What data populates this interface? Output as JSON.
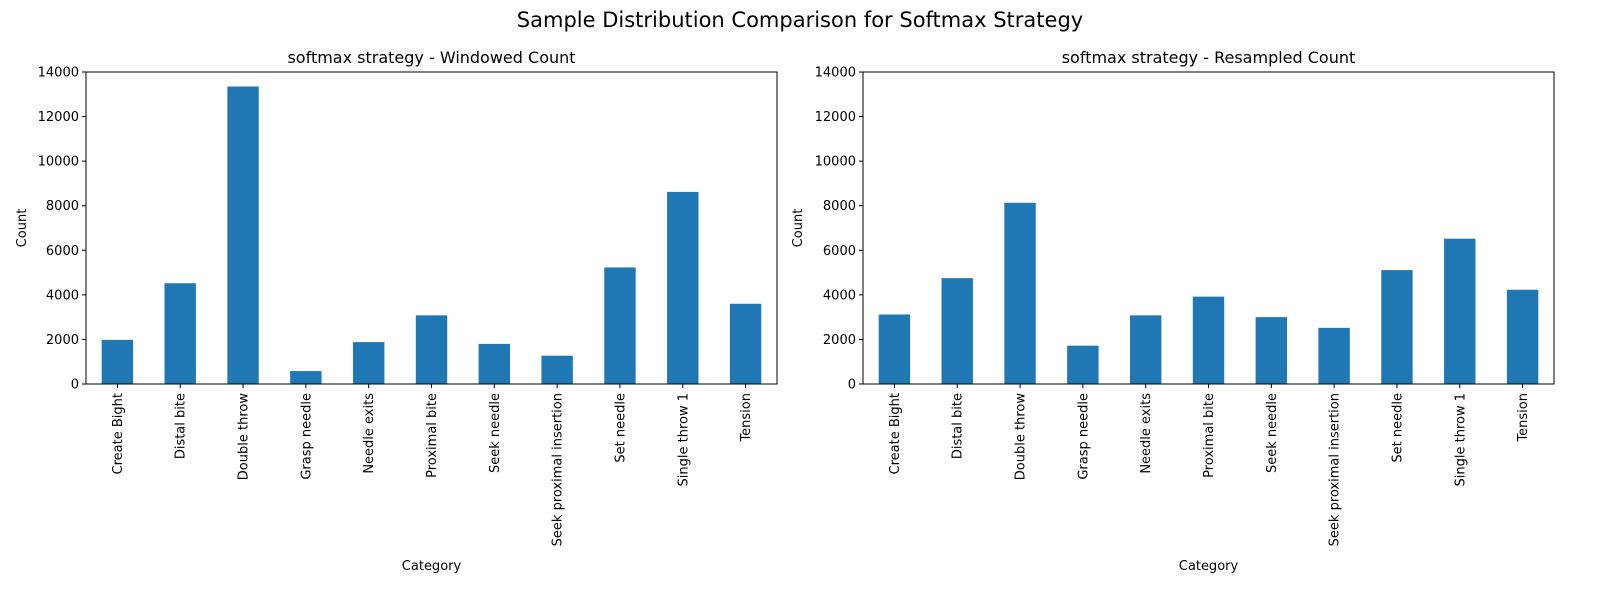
{
  "figure_title": "Sample Distribution Comparison for Softmax Strategy",
  "colors": {
    "bar": "#1f77b4",
    "axis": "#000000"
  },
  "chart_data": [
    {
      "type": "bar",
      "title": "softmax strategy - Windowed Count",
      "xlabel": "Category",
      "ylabel": "Count",
      "ylim": [
        0,
        14000
      ],
      "yticks": [
        0,
        2000,
        4000,
        6000,
        8000,
        10000,
        12000,
        14000
      ],
      "grid": false,
      "categories": [
        "Create Bight",
        "Distal bite",
        "Double throw",
        "Grasp needle",
        "Needle exits",
        "Proximal bite",
        "Seek needle",
        "Seek proximal insertion",
        "Set needle",
        "Single throw 1",
        "Tension"
      ],
      "values": [
        1980,
        4520,
        13350,
        580,
        1880,
        3080,
        1800,
        1270,
        5230,
        8620,
        3600
      ]
    },
    {
      "type": "bar",
      "title": "softmax strategy - Resampled Count",
      "xlabel": "Category",
      "ylabel": "Count",
      "ylim": [
        0,
        14000
      ],
      "yticks": [
        0,
        2000,
        4000,
        6000,
        8000,
        10000,
        12000,
        14000
      ],
      "grid": false,
      "categories": [
        "Create Bight",
        "Distal bite",
        "Double throw",
        "Grasp needle",
        "Needle exits",
        "Proximal bite",
        "Seek needle",
        "Seek proximal insertion",
        "Set needle",
        "Single throw 1",
        "Tension"
      ],
      "values": [
        3120,
        4750,
        8130,
        1720,
        3080,
        3920,
        3000,
        2520,
        5110,
        6520,
        4230
      ]
    }
  ]
}
